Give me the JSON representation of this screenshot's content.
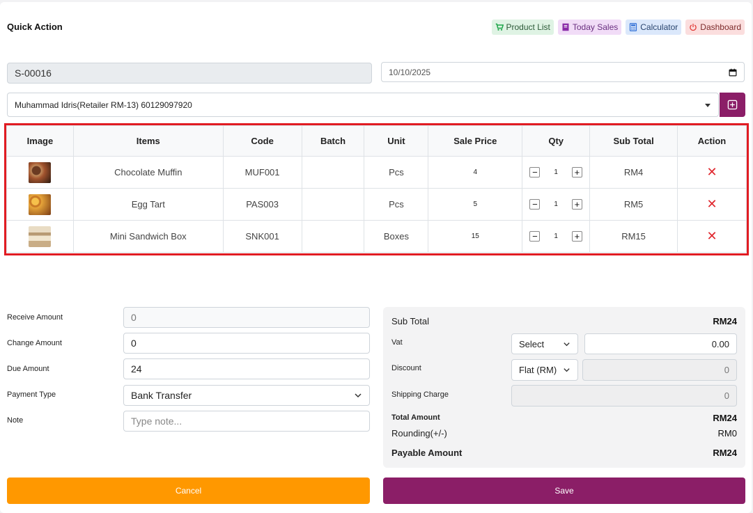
{
  "header": {
    "title": "Quick Action"
  },
  "quick_links": [
    {
      "label": "Product List",
      "icon": "cart-icon",
      "color": "#1fa64a"
    },
    {
      "label": "Today Sales",
      "icon": "receipt-icon",
      "color": "#8a2aa8"
    },
    {
      "label": "Calculator",
      "icon": "calculator-icon",
      "color": "#2f6fd6"
    },
    {
      "label": "Dashboard",
      "icon": "power-icon",
      "color": "#e0332f"
    }
  ],
  "form": {
    "invoice_no": "S-00016",
    "date": "10/10/2025",
    "customer": "Muhammad Idris(Retailer RM-13) 60129097920"
  },
  "table": {
    "headers": [
      "Image",
      "Items",
      "Code",
      "Batch",
      "Unit",
      "Sale Price",
      "Qty",
      "Sub Total",
      "Action"
    ],
    "rows": [
      {
        "image": "chocolate-muffin-thumb",
        "item": "Chocolate Muffin",
        "code": "MUF001",
        "batch": "",
        "unit": "Pcs",
        "price": "4",
        "qty": "1",
        "subtotal": "RM4"
      },
      {
        "image": "egg-tart-thumb",
        "item": "Egg Tart",
        "code": "PAS003",
        "batch": "",
        "unit": "Pcs",
        "price": "5",
        "qty": "1",
        "subtotal": "RM5"
      },
      {
        "image": "mini-sandwich-box-thumb",
        "item": "Mini Sandwich Box",
        "code": "SNK001",
        "batch": "",
        "unit": "Boxes",
        "price": "15",
        "qty": "1",
        "subtotal": "RM15"
      }
    ]
  },
  "payment": {
    "receive_label": "Receive Amount",
    "receive_value": "0",
    "change_label": "Change Amount",
    "change_value": "0",
    "due_label": "Due Amount",
    "due_value": "24",
    "type_label": "Payment Type",
    "type_value": "Bank Transfer",
    "note_label": "Note",
    "note_placeholder": "Type note..."
  },
  "summary": {
    "subtotal_label": "Sub Total",
    "subtotal_value": "RM24",
    "vat_label": "Vat",
    "vat_select": "Select",
    "vat_value": "0.00",
    "discount_label": "Discount",
    "discount_select": "Flat (RM)",
    "discount_value": "0",
    "shipping_label": "Shipping Charge",
    "shipping_value": "0",
    "total_label": "Total Amount",
    "total_value": "RM24",
    "rounding_label": "Rounding(+/-)",
    "rounding_value": "RM0",
    "payable_label": "Payable Amount",
    "payable_value": "RM24"
  },
  "actions": {
    "cancel": "Cancel",
    "save": "Save"
  },
  "colors": {
    "primary": "#8b1e67",
    "cancel": "#ff9800",
    "highlight": "#e11b22",
    "delete": "#e0262d"
  }
}
